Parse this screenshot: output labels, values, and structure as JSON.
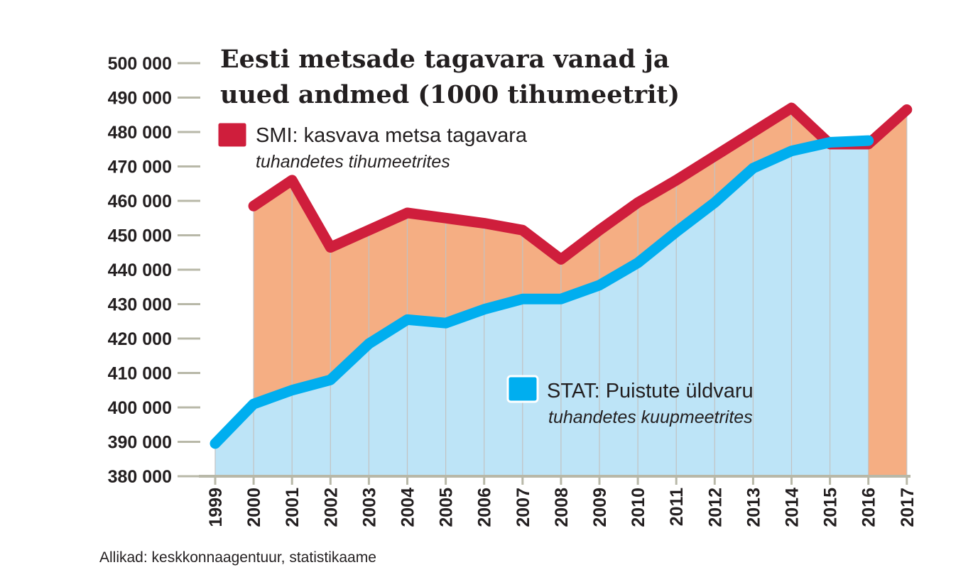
{
  "chart_data": {
    "type": "area",
    "title_lines": [
      "Eesti metsade tagavara vanad ja",
      "uued andmed (1000 tihumeetrit)"
    ],
    "x": [
      "1999",
      "2000",
      "2001",
      "2002",
      "2003",
      "2004",
      "2005",
      "2006",
      "2007",
      "2008",
      "2009",
      "2010",
      "2011",
      "2012",
      "2013",
      "2014",
      "2015",
      "2016",
      "2017"
    ],
    "y_ticks": [
      "380 000",
      "390 000",
      "400 000",
      "410 000",
      "420 000",
      "430 000",
      "440 000",
      "450 000",
      "460 000",
      "470 000",
      "480 000",
      "490 000",
      "500 000"
    ],
    "ylim": [
      380000,
      500000
    ],
    "series": [
      {
        "name": "SMI: kasvava metsa tagavara",
        "subtitle": "tuhandetes tihumeetrites",
        "line_color": "#cf1e3c",
        "fill_color": "#f5ae83",
        "values": [
          null,
          458500,
          466000,
          446500,
          451500,
          456500,
          455000,
          453500,
          451500,
          443000,
          451500,
          459500,
          466000,
          473000,
          480000,
          487000,
          476500,
          476500,
          486500
        ]
      },
      {
        "name": "STAT: Puistute üldvaru",
        "subtitle": "tuhandetes kuupmeetrites",
        "line_color": "#00aeef",
        "fill_color": "#bde4f7",
        "values": [
          389500,
          401000,
          405000,
          408000,
          418500,
          425500,
          424500,
          428500,
          431500,
          431500,
          435500,
          442000,
          451000,
          459500,
          469500,
          474500,
          477000,
          477500,
          null
        ]
      }
    ],
    "grid": true,
    "source": "Allikad: keskkonnaagentuur, statistikaame"
  }
}
